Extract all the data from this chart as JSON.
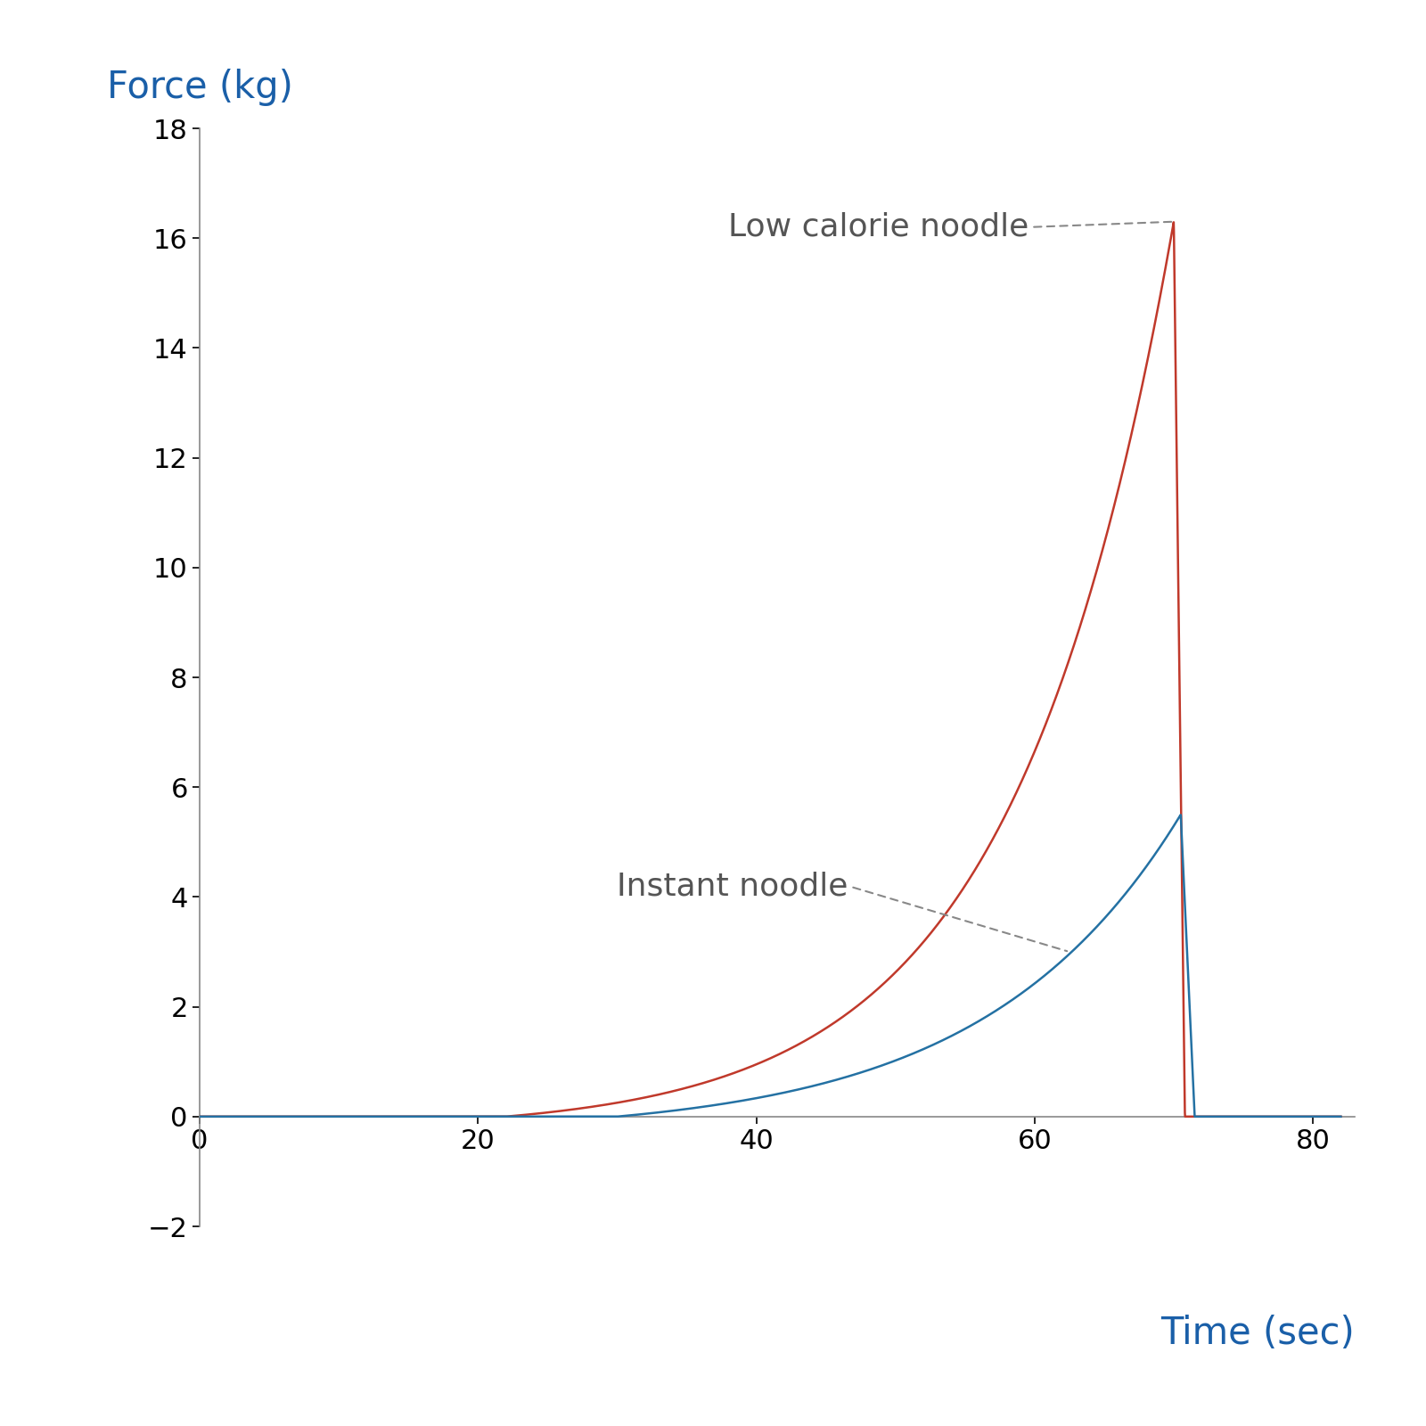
{
  "xlabel": "Time (sec)",
  "ylabel": "Force (kg)",
  "xlabel_color": "#1a5fa8",
  "ylabel_color": "#1a5fa8",
  "xlim": [
    0,
    83
  ],
  "ylim": [
    -2,
    18
  ],
  "xticks": [
    0,
    20,
    40,
    60,
    80
  ],
  "yticks": [
    -2,
    0,
    2,
    4,
    6,
    8,
    10,
    12,
    14,
    16,
    18
  ],
  "low_calorie_color": "#c0392b",
  "instant_color": "#2471a3",
  "background_color": "#ffffff",
  "label_low_calorie": "Low calorie noodle",
  "label_instant": "Instant noodle",
  "label_color": "#555555",
  "spine_color": "#888888",
  "tick_label_size": 22,
  "axis_label_size": 30,
  "annotation_size": 26
}
